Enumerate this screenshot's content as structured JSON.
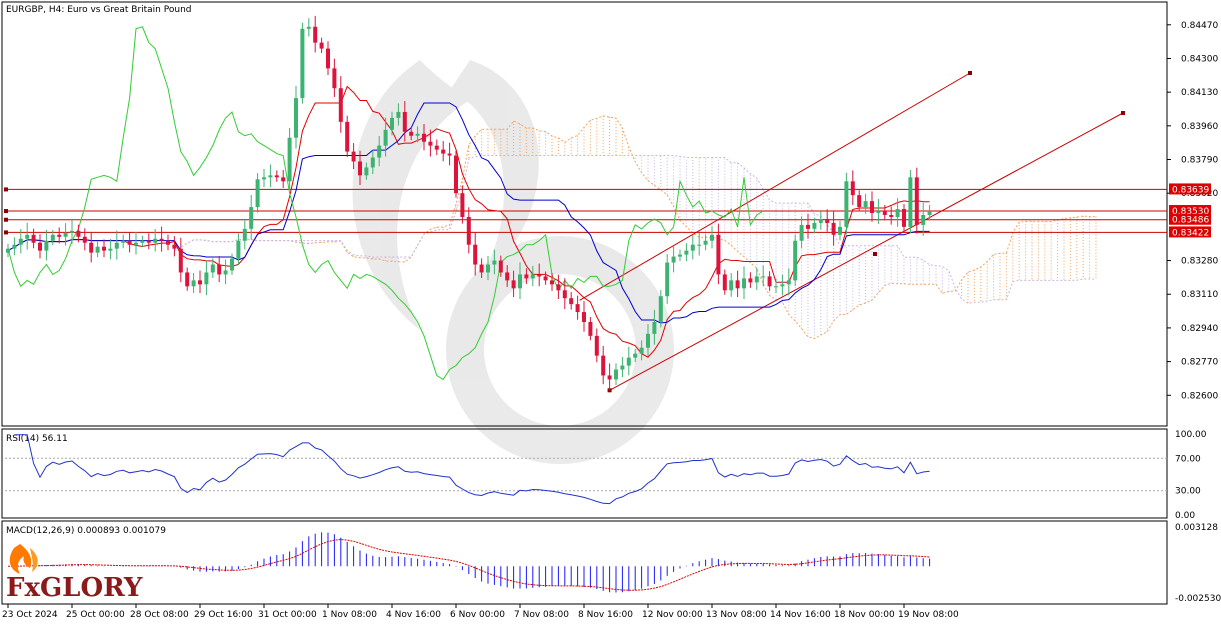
{
  "header": {
    "title": "EURGBP, H4:  Euro vs Great Britain Pound"
  },
  "logo": {
    "text": "FxGLORY"
  },
  "chart_data": {
    "type": "candlestick",
    "symbol": "EURGBP",
    "timeframe": "H4",
    "price_ticks": [
      "0.84470",
      "0.84300",
      "0.84130",
      "0.83960",
      "0.83790",
      "0.83620",
      "0.83280",
      "0.83110",
      "0.82940",
      "0.82770",
      "0.82600"
    ],
    "price_tick_values": [
      0.8447,
      0.843,
      0.8413,
      0.8396,
      0.8379,
      0.8362,
      0.8328,
      0.8311,
      0.8294,
      0.8277,
      0.826
    ],
    "ylim": [
      0.8245,
      0.8458
    ],
    "x_labels": [
      "23 Oct 2024",
      "25 Oct 00:00",
      "28 Oct 08:00",
      "29 Oct 16:00",
      "31 Oct 00:00",
      "1 Nov 08:00",
      "4 Nov 16:00",
      "6 Nov 00:00",
      "7 Nov 08:00",
      "8 Nov 16:00",
      "12 Nov 00:00",
      "13 Nov 08:00",
      "14 Nov 16:00",
      "18 Nov 00:00",
      "19 Nov 08:00"
    ],
    "x_label_bars": [
      0,
      10,
      20,
      30,
      40,
      50,
      60,
      70,
      80,
      90,
      100,
      110,
      120,
      130,
      140
    ],
    "closes": [
      0.8334,
      0.8336,
      0.8339,
      0.8341,
      0.8337,
      0.8333,
      0.8338,
      0.8341,
      0.834,
      0.8342,
      0.8343,
      0.834,
      0.8337,
      0.8332,
      0.8335,
      0.8333,
      0.8334,
      0.8337,
      0.8338,
      0.8336,
      0.8337,
      0.8338,
      0.8337,
      0.8339,
      0.8338,
      0.8336,
      0.8334,
      0.8322,
      0.8315,
      0.8318,
      0.8316,
      0.8322,
      0.8326,
      0.8321,
      0.8323,
      0.8329,
      0.8338,
      0.8344,
      0.8355,
      0.8369,
      0.837,
      0.8371,
      0.837,
      0.8368,
      0.839,
      0.841,
      0.8445,
      0.8446,
      0.8438,
      0.8435,
      0.8425,
      0.8415,
      0.8398,
      0.8383,
      0.8378,
      0.8371,
      0.8375,
      0.838,
      0.8386,
      0.8394,
      0.84,
      0.8403,
      0.8393,
      0.8391,
      0.8392,
      0.8388,
      0.8386,
      0.8384,
      0.8382,
      0.8381,
      0.8362,
      0.835,
      0.8336,
      0.8326,
      0.8322,
      0.8326,
      0.8328,
      0.8322,
      0.8318,
      0.8314,
      0.8321,
      0.8319,
      0.8321,
      0.832,
      0.8318,
      0.8316,
      0.8313,
      0.8309,
      0.8306,
      0.8302,
      0.8297,
      0.829,
      0.828,
      0.827,
      0.8268,
      0.8273,
      0.8275,
      0.8279,
      0.8281,
      0.8284,
      0.8291,
      0.8297,
      0.831,
      0.8327,
      0.833,
      0.8331,
      0.8333,
      0.8336,
      0.8336,
      0.8338,
      0.8341,
      0.8321,
      0.8313,
      0.8318,
      0.8314,
      0.8319,
      0.8317,
      0.832,
      0.832,
      0.8315,
      0.8315,
      0.8316,
      0.8318,
      0.8338,
      0.8346,
      0.8344,
      0.8347,
      0.8349,
      0.8347,
      0.8341,
      0.8345,
      0.8368,
      0.8361,
      0.8355,
      0.8358,
      0.8352,
      0.8353,
      0.8351,
      0.835,
      0.8354,
      0.8345,
      0.837,
      0.8346,
      0.8351,
      0.8353
    ],
    "current_price_tags": [
      {
        "label": "0.83639",
        "value": 0.83639
      },
      {
        "label": "0.83530",
        "value": 0.8353
      },
      {
        "label": "0.83486",
        "value": 0.83486
      },
      {
        "label": "0.83422",
        "value": 0.83422
      }
    ],
    "indicators": [
      "Ichimoku Kinko Hyo",
      "RSI(14)",
      "MACD(12,26,9)"
    ],
    "colors": {
      "bull": "#3cb371",
      "bear": "#dc143c",
      "tenkan": "#e00000",
      "kijun": "#0000cd",
      "chikou": "#33cc33",
      "span_a": "#f4a460",
      "span_b": "#c8b4e6",
      "hline": "#cc0000"
    },
    "rsi": {
      "label": "RSI(14) 56.11",
      "period": 14,
      "value": 56.11,
      "ticks": [
        "100.00",
        "70.00",
        "30.00",
        "0.00"
      ],
      "tick_values": [
        100,
        70,
        30,
        0
      ],
      "levels": [
        70,
        30
      ]
    },
    "macd": {
      "label": "MACD(12,26,9) 0.000893 0.001079",
      "value": 0.000893,
      "signal": 0.001079,
      "ticks": [
        "0.003128",
        "-0.002530"
      ],
      "tick_values": [
        0.003128,
        -0.00253
      ]
    }
  }
}
